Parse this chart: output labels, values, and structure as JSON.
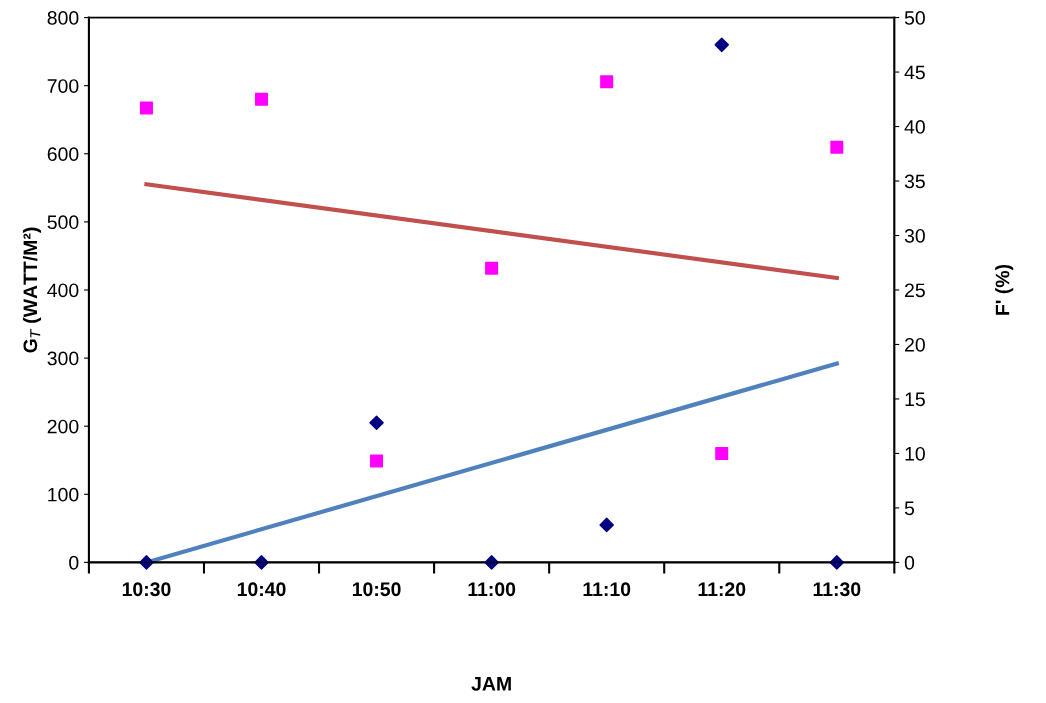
{
  "chart_data": {
    "type": "scatter",
    "xlabel": "JAM",
    "ylabel": "G$_{T}$ (WATT/M²)",
    "y2label": "F' (%)",
    "categories": [
      "10:30",
      "10:40",
      "10:50",
      "11:00",
      "11:10",
      "11:20",
      "11:30"
    ],
    "ylim": [
      0,
      800
    ],
    "yticks": [
      0,
      100,
      200,
      300,
      400,
      500,
      600,
      700,
      800
    ],
    "y2lim": [
      0,
      50
    ],
    "y2ticks": [
      0,
      5,
      10,
      15,
      20,
      25,
      30,
      35,
      40,
      45,
      50
    ],
    "grid": false,
    "legend": false,
    "series": [
      {
        "marker": "diamond",
        "color": "#000080",
        "values": [
          0,
          0,
          205,
          0,
          55,
          760,
          0
        ]
      },
      {
        "marker": "square",
        "color": "#ff00ff",
        "axis": "y2",
        "values": [
          41.7,
          42.5,
          9.3,
          27,
          44.1,
          10,
          38.1
        ]
      },
      {
        "type": "line",
        "marker": "none",
        "color": "#c0504d",
        "axis": "y2",
        "x": [
          "10:30",
          "11:30"
        ],
        "values": [
          34.7,
          26.1
        ]
      },
      {
        "type": "line",
        "marker": "none",
        "color": "#4f81bd",
        "x": [
          "10:30",
          "11:30"
        ],
        "values": [
          0,
          292
        ]
      }
    ]
  }
}
